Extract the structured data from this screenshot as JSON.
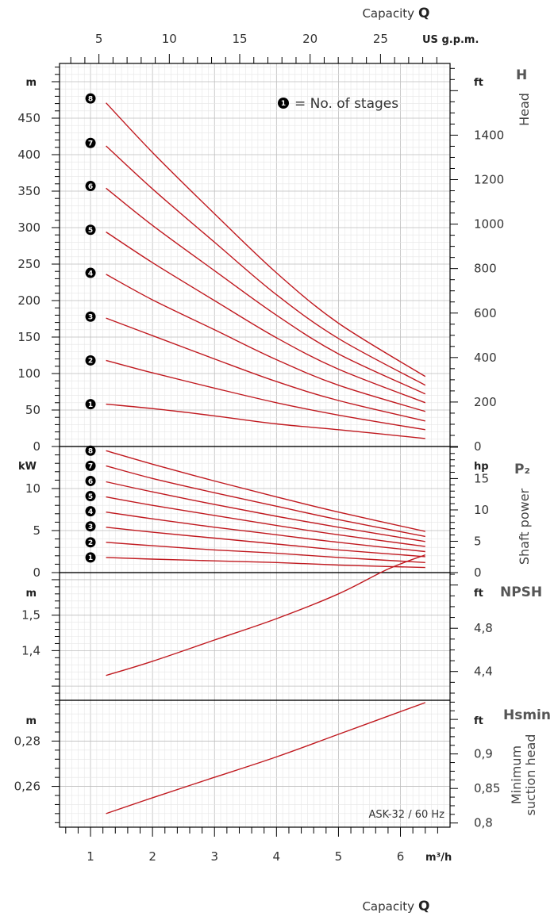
{
  "capacity_top": {
    "label": "Capacity",
    "symbol": "Q",
    "unit": "US g.p.m.",
    "ticks": [
      5,
      10,
      15,
      20,
      25
    ]
  },
  "capacity_bottom": {
    "label": "Capacity",
    "symbol": "Q",
    "unit": "m³/h",
    "ticks": [
      "1",
      "2",
      "3",
      "4",
      "5",
      "6"
    ]
  },
  "legend": {
    "badge": "1",
    "text": "= No. of stages"
  },
  "model_label": "ASK-32 / 60 Hz",
  "chart_data": [
    {
      "type": "line",
      "panel": "head",
      "title": "H",
      "ylabel": "Head",
      "xlabel": "Capacity Q",
      "left_unit": "m",
      "right_unit": "ft",
      "xlim": [
        0.5,
        6.8
      ],
      "ylim": [
        0,
        525
      ],
      "left_ticks": [
        "0",
        "50",
        "100",
        "150",
        "200",
        "250",
        "300",
        "350",
        "400",
        "450"
      ],
      "right_ticks": [
        "0",
        "200",
        "400",
        "600",
        "800",
        "1000",
        "1200",
        "1400"
      ],
      "stage_labels": [
        "1",
        "2",
        "3",
        "4",
        "5",
        "6",
        "7",
        "8"
      ],
      "stage_label_values": [
        58,
        118,
        178,
        238,
        297,
        357,
        416,
        477
      ],
      "x": [
        1.25,
        2,
        3,
        4,
        5,
        6.4
      ],
      "series": [
        {
          "stages": "1",
          "values": [
            58,
            52,
            42,
            31,
            23,
            11
          ]
        },
        {
          "stages": "2",
          "values": [
            118,
            101,
            80,
            60,
            43,
            23
          ]
        },
        {
          "stages": "3",
          "values": [
            176,
            152,
            120,
            89,
            63,
            35
          ]
        },
        {
          "stages": "4",
          "values": [
            236,
            201,
            160,
            119,
            84,
            48
          ]
        },
        {
          "stages": "5",
          "values": [
            294,
            252,
            200,
            149,
            106,
            60
          ]
        },
        {
          "stages": "6",
          "values": [
            354,
            303,
            241,
            180,
            127,
            72
          ]
        },
        {
          "stages": "7",
          "values": [
            412,
            353,
            280,
            208,
            148,
            84
          ]
        },
        {
          "stages": "8",
          "values": [
            471,
            403,
            319,
            238,
            169,
            96
          ]
        }
      ]
    },
    {
      "type": "line",
      "panel": "power",
      "title": "P₂",
      "ylabel": "Shaft power",
      "left_unit": "kW",
      "right_unit": "hp",
      "xlim": [
        0.5,
        6.8
      ],
      "ylim": [
        0,
        15
      ],
      "left_ticks": [
        "0",
        "5",
        "10"
      ],
      "right_ticks": [
        "0",
        "5",
        "10",
        "15"
      ],
      "stage_labels": [
        "1",
        "2",
        "3",
        "4",
        "5",
        "6",
        "7",
        "8"
      ],
      "stage_label_values": [
        1.8,
        3.6,
        5.5,
        7.3,
        9.1,
        10.9,
        12.7,
        14.5
      ],
      "x": [
        1.25,
        2,
        3,
        4,
        5,
        6.4
      ],
      "series": [
        {
          "stages": "1",
          "values": [
            1.8,
            1.6,
            1.4,
            1.2,
            0.9,
            0.6
          ]
        },
        {
          "stages": "2",
          "values": [
            3.6,
            3.2,
            2.7,
            2.3,
            1.8,
            1.2
          ]
        },
        {
          "stages": "3",
          "values": [
            5.4,
            4.8,
            4.1,
            3.4,
            2.7,
            1.9
          ]
        },
        {
          "stages": "4",
          "values": [
            7.2,
            6.4,
            5.4,
            4.5,
            3.6,
            2.5
          ]
        },
        {
          "stages": "5",
          "values": [
            9.0,
            8.0,
            6.8,
            5.6,
            4.5,
            3.1
          ]
        },
        {
          "stages": "6",
          "values": [
            10.8,
            9.6,
            8.1,
            6.7,
            5.4,
            3.7
          ]
        },
        {
          "stages": "7",
          "values": [
            12.7,
            11.2,
            9.5,
            7.9,
            6.3,
            4.3
          ]
        },
        {
          "stages": "8",
          "values": [
            14.5,
            12.9,
            10.9,
            9.0,
            7.2,
            4.9
          ]
        }
      ]
    },
    {
      "type": "line",
      "panel": "npsh",
      "title": "NPSH",
      "left_unit": "m",
      "right_unit": "ft",
      "xlim": [
        0.5,
        6.8
      ],
      "ylim": [
        1.26,
        1.62
      ],
      "left_ticks": [
        "1,4",
        "1,5"
      ],
      "right_ticks": [
        "4,4",
        "4,8"
      ],
      "x": [
        1.25,
        2,
        3,
        4,
        5,
        5.8,
        6.4
      ],
      "series": [
        {
          "name": "NPSH",
          "values": [
            1.33,
            1.37,
            1.43,
            1.49,
            1.56,
            1.63,
            1.67
          ]
        }
      ]
    },
    {
      "type": "line",
      "panel": "hsmin",
      "title": "Hsmin",
      "ylabel": "Minimum suction head",
      "left_unit": "m",
      "right_unit": "ft",
      "xlim": [
        0.5,
        6.8
      ],
      "ylim": [
        0.242,
        0.298
      ],
      "left_ticks": [
        "0,26",
        "0,28"
      ],
      "right_ticks": [
        "0,8",
        "0,85",
        "0,9"
      ],
      "x": [
        1.25,
        2,
        3,
        4,
        5,
        6.4
      ],
      "series": [
        {
          "name": "Hsmin",
          "values": [
            0.248,
            0.255,
            0.264,
            0.273,
            0.283,
            0.297
          ]
        }
      ]
    }
  ]
}
